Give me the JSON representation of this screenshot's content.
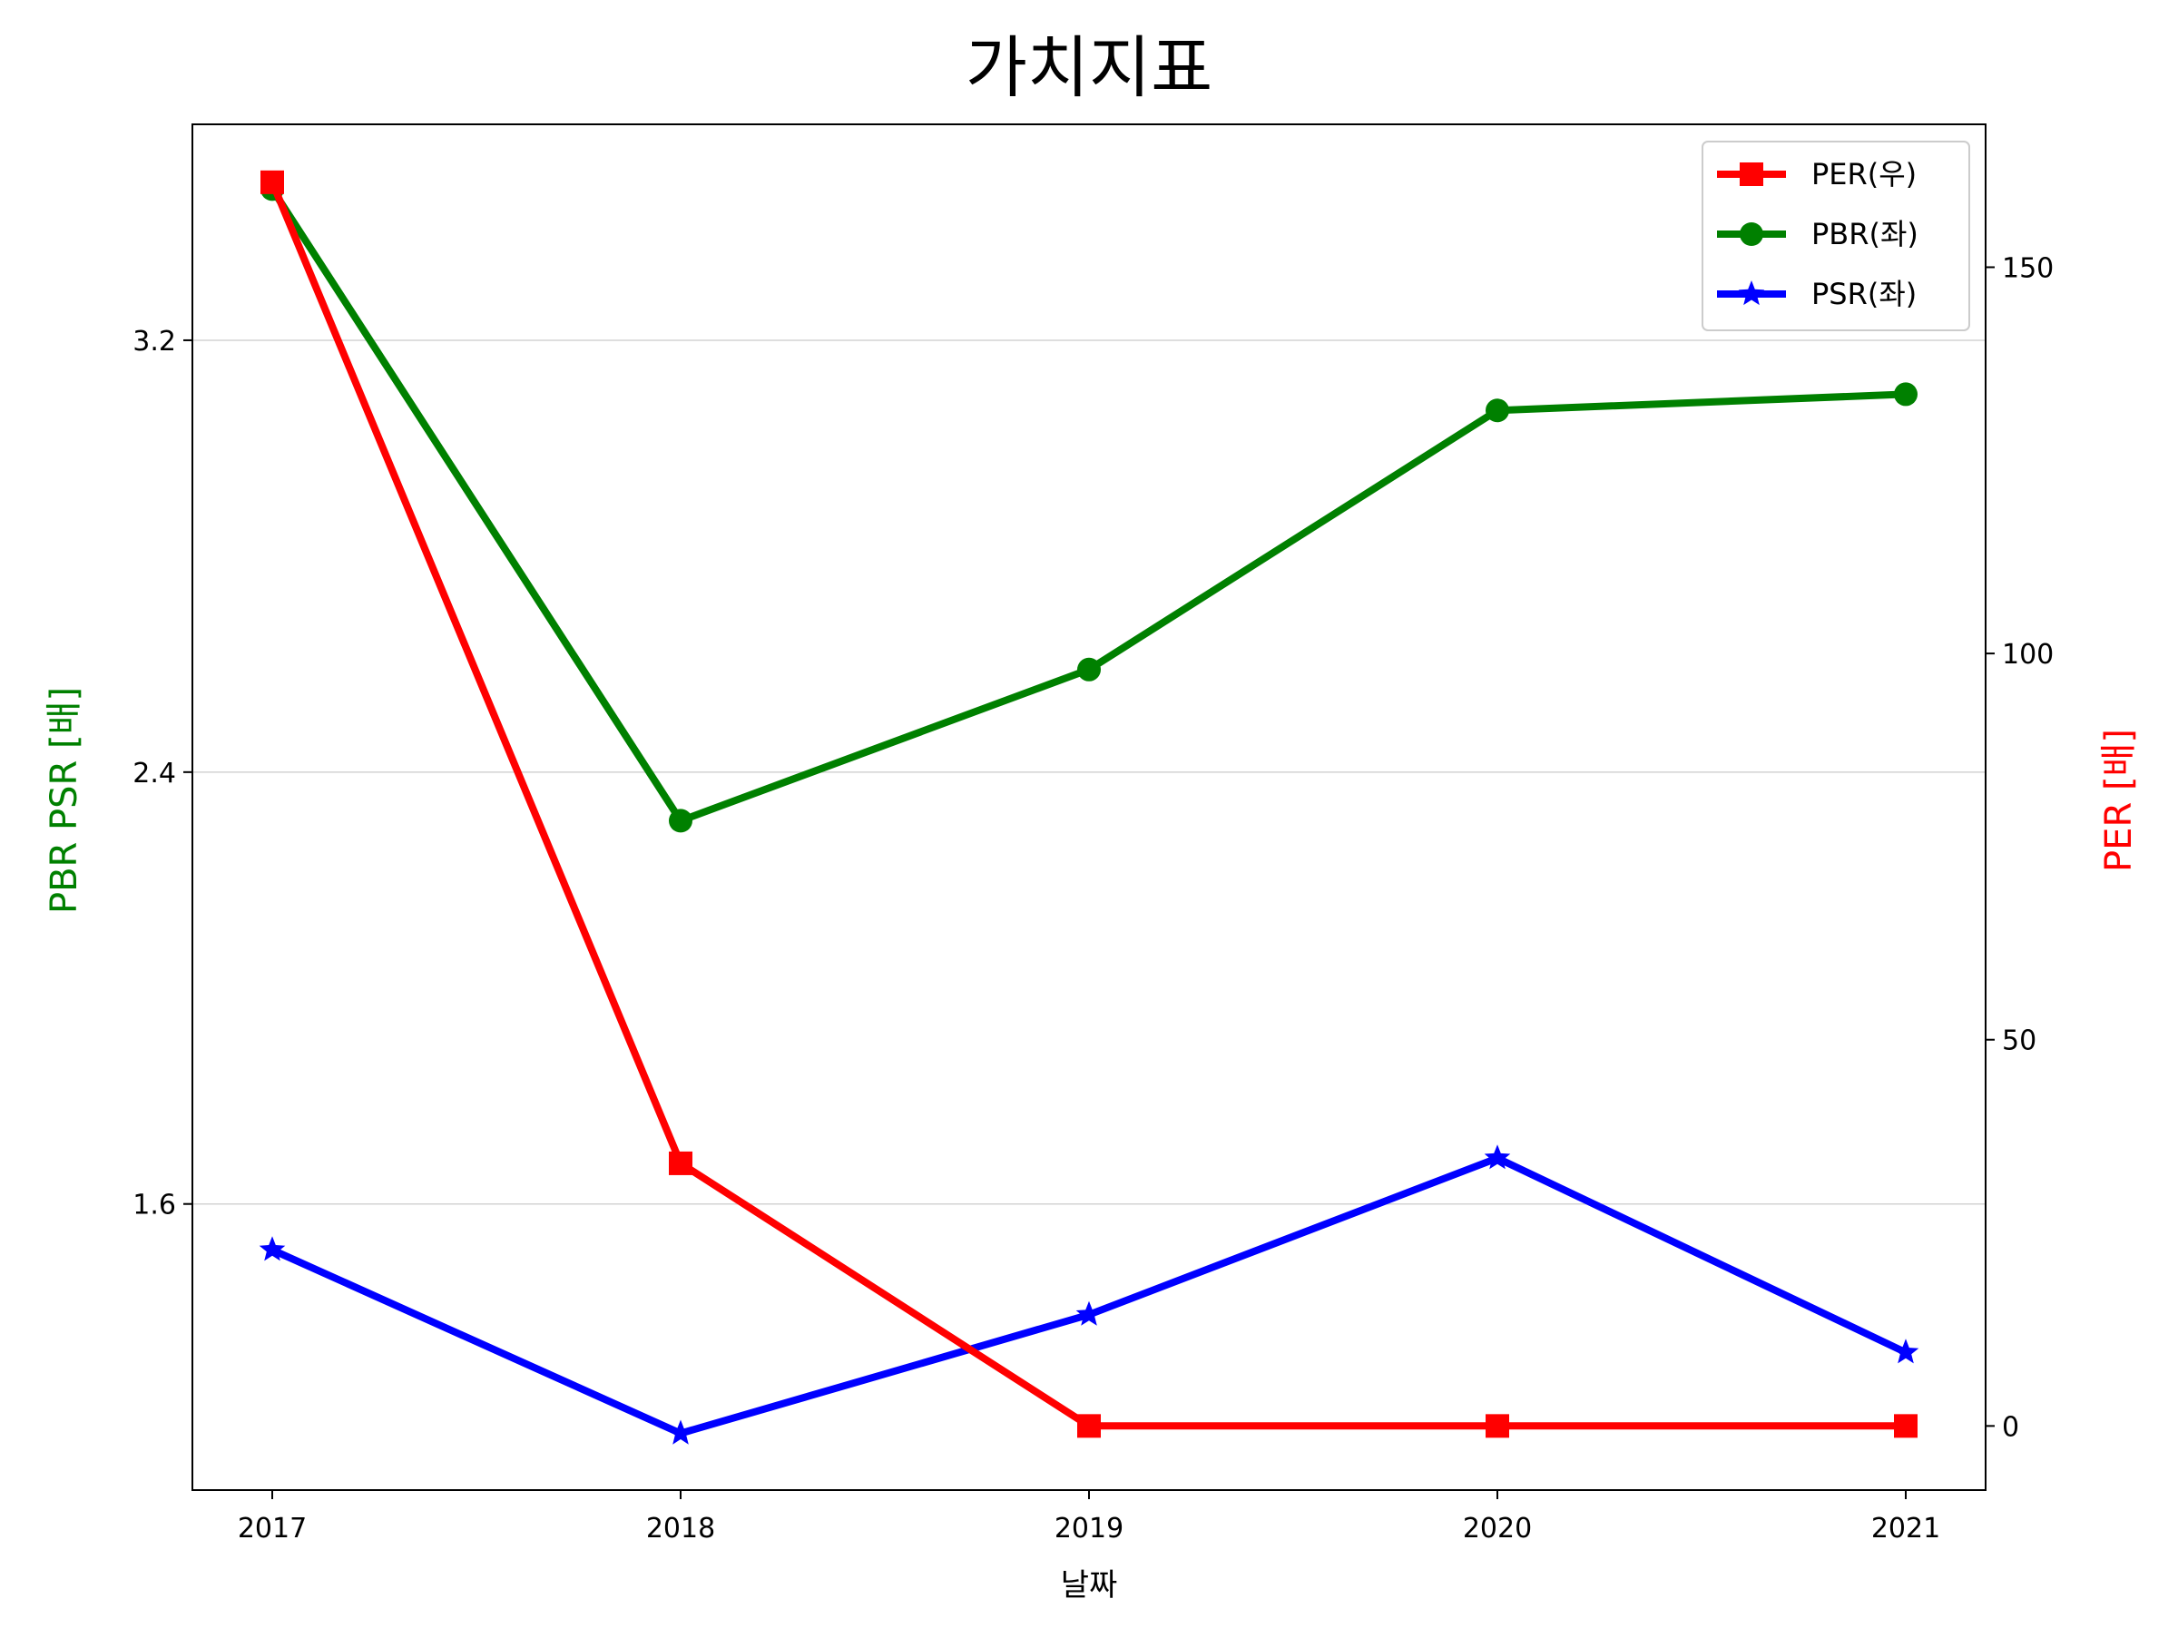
{
  "chart_data": {
    "type": "line",
    "title": "가치지표",
    "xlabel": "날짜",
    "ylabel_left": "PBR PSR [배]",
    "ylabel_right": "PER [배]",
    "ylabel_left_color": "#008000",
    "ylabel_right_color": "#ff0000",
    "categories": [
      "2017",
      "2018",
      "2019",
      "2020",
      "2021"
    ],
    "y_left": {
      "ylim": [
        1.07,
        3.6
      ],
      "ticks": [
        1.6,
        2.4,
        3.2
      ],
      "tick_labels": [
        "1.6",
        "2.4",
        "3.2"
      ],
      "grid": true
    },
    "y_right": {
      "ylim": [
        -8.3,
        168.5
      ],
      "ticks": [
        0,
        50,
        100,
        150
      ],
      "tick_labels": [
        "0",
        "50",
        "100",
        "150"
      ],
      "grid": false
    },
    "legend": {
      "position": "top-right"
    },
    "series": [
      {
        "name": "PER(우)",
        "axis": "right",
        "color": "#ff0000",
        "marker": "square",
        "values": [
          161,
          34,
          0,
          0,
          0
        ]
      },
      {
        "name": "PBR(좌)",
        "axis": "left",
        "color": "#008000",
        "marker": "circle",
        "values": [
          3.48,
          2.31,
          2.59,
          3.07,
          3.1
        ]
      },
      {
        "name": "PSR(좌)",
        "axis": "left",
        "color": "#0000ff",
        "marker": "star",
        "values": [
          1.515,
          1.175,
          1.395,
          1.685,
          1.325
        ]
      }
    ]
  }
}
